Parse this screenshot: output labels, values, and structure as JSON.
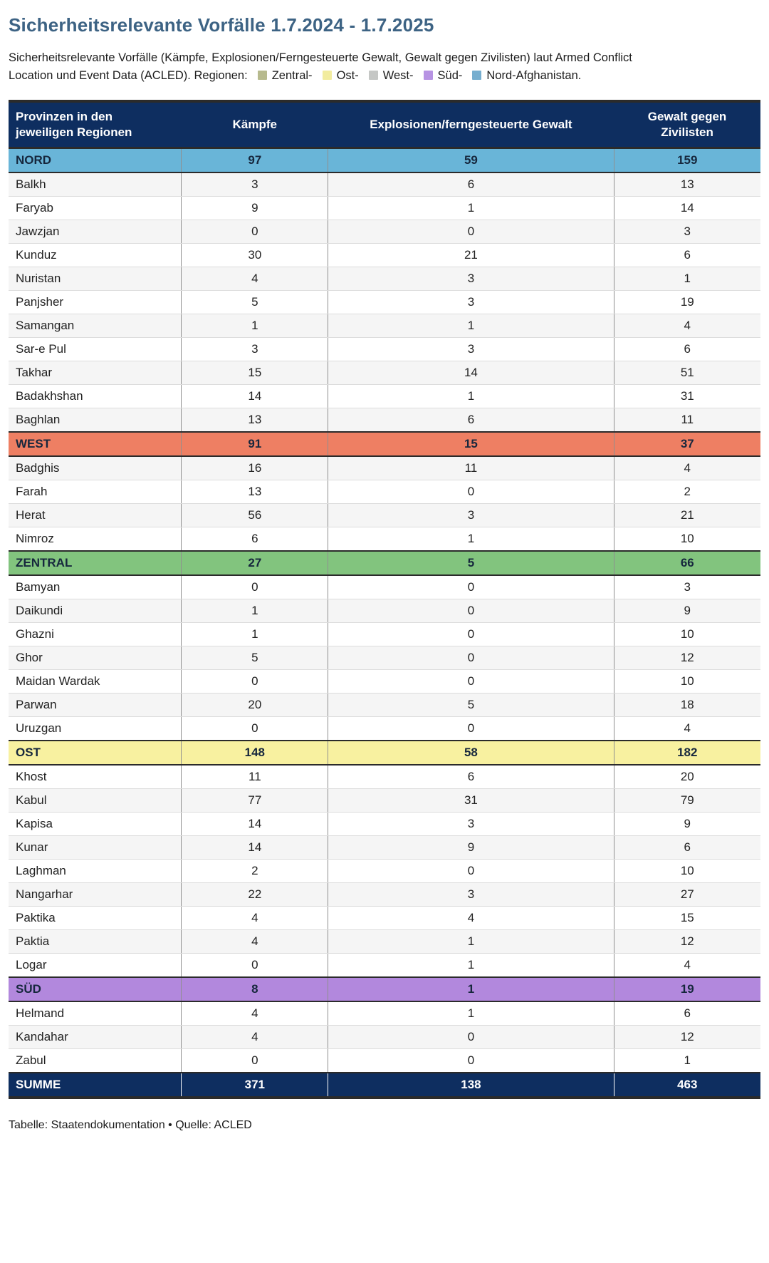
{
  "chart_data": {
    "type": "table",
    "title": "Sicherheitsrelevante Vorfälle 1.7.2024 - 1.7.2025",
    "subtitle_text": "Sicherheitsrelevante Vorfälle (Kämpfe, Explosionen/Ferngesteuerte Gewalt, Gewalt gegen Zivilisten) laut Armed Conflict Location und Event Data (ACLED). Regionen:",
    "legend": [
      {
        "label": "Zentral-",
        "color": "#b7ba8e"
      },
      {
        "label": "Ost-",
        "color": "#f2ec9f"
      },
      {
        "label": "West-",
        "color": "#c5c7c5"
      },
      {
        "label": "Süd-",
        "color": "#b793e3"
      },
      {
        "label": "Nord-Afghanistan.",
        "color": "#76aecf"
      }
    ],
    "columns": [
      "Provinzen in den jeweiligen Regionen",
      "Kämpfe",
      "Explosionen/ferngesteuerte Gewalt",
      "Gewalt gegen Zivilisten"
    ],
    "rows": [
      {
        "type": "region",
        "label": "NORD",
        "values": [
          97,
          59,
          159
        ],
        "color": "#69b5d8"
      },
      {
        "type": "province",
        "label": "Balkh",
        "values": [
          3,
          6,
          13
        ]
      },
      {
        "type": "province",
        "label": "Faryab",
        "values": [
          9,
          1,
          14
        ]
      },
      {
        "type": "province",
        "label": "Jawzjan",
        "values": [
          0,
          0,
          3
        ]
      },
      {
        "type": "province",
        "label": "Kunduz",
        "values": [
          30,
          21,
          6
        ]
      },
      {
        "type": "province",
        "label": "Nuristan",
        "values": [
          4,
          3,
          1
        ]
      },
      {
        "type": "province",
        "label": "Panjsher",
        "values": [
          5,
          3,
          19
        ]
      },
      {
        "type": "province",
        "label": "Samangan",
        "values": [
          1,
          1,
          4
        ]
      },
      {
        "type": "province",
        "label": "Sar-e Pul",
        "values": [
          3,
          3,
          6
        ]
      },
      {
        "type": "province",
        "label": "Takhar",
        "values": [
          15,
          14,
          51
        ]
      },
      {
        "type": "province",
        "label": "Badakhshan",
        "values": [
          14,
          1,
          31
        ]
      },
      {
        "type": "province",
        "label": "Baghlan",
        "values": [
          13,
          6,
          11
        ]
      },
      {
        "type": "region",
        "label": "WEST",
        "values": [
          91,
          15,
          37
        ],
        "color": "#ee7f63"
      },
      {
        "type": "province",
        "label": "Badghis",
        "values": [
          16,
          11,
          4
        ]
      },
      {
        "type": "province",
        "label": "Farah",
        "values": [
          13,
          0,
          2
        ]
      },
      {
        "type": "province",
        "label": "Herat",
        "values": [
          56,
          3,
          21
        ]
      },
      {
        "type": "province",
        "label": "Nimroz",
        "values": [
          6,
          1,
          10
        ]
      },
      {
        "type": "region",
        "label": "ZENTRAL",
        "values": [
          27,
          5,
          66
        ],
        "color": "#82c47e"
      },
      {
        "type": "province",
        "label": "Bamyan",
        "values": [
          0,
          0,
          3
        ]
      },
      {
        "type": "province",
        "label": "Daikundi",
        "values": [
          1,
          0,
          9
        ]
      },
      {
        "type": "province",
        "label": "Ghazni",
        "values": [
          1,
          0,
          10
        ]
      },
      {
        "type": "province",
        "label": "Ghor",
        "values": [
          5,
          0,
          12
        ]
      },
      {
        "type": "province",
        "label": "Maidan Wardak",
        "values": [
          0,
          0,
          10
        ]
      },
      {
        "type": "province",
        "label": "Parwan",
        "values": [
          20,
          5,
          18
        ]
      },
      {
        "type": "province",
        "label": "Uruzgan",
        "values": [
          0,
          0,
          4
        ]
      },
      {
        "type": "region",
        "label": "OST",
        "values": [
          148,
          58,
          182
        ],
        "color": "#f8f1a0"
      },
      {
        "type": "province",
        "label": "Khost",
        "values": [
          11,
          6,
          20
        ]
      },
      {
        "type": "province",
        "label": "Kabul",
        "values": [
          77,
          31,
          79
        ]
      },
      {
        "type": "province",
        "label": "Kapisa",
        "values": [
          14,
          3,
          9
        ]
      },
      {
        "type": "province",
        "label": "Kunar",
        "values": [
          14,
          9,
          6
        ]
      },
      {
        "type": "province",
        "label": "Laghman",
        "values": [
          2,
          0,
          10
        ]
      },
      {
        "type": "province",
        "label": "Nangarhar",
        "values": [
          22,
          3,
          27
        ]
      },
      {
        "type": "province",
        "label": "Paktika",
        "values": [
          4,
          4,
          15
        ]
      },
      {
        "type": "province",
        "label": "Paktia",
        "values": [
          4,
          1,
          12
        ]
      },
      {
        "type": "province",
        "label": "Logar",
        "values": [
          0,
          1,
          4
        ]
      },
      {
        "type": "region",
        "label": "SÜD",
        "values": [
          8,
          1,
          19
        ],
        "color": "#b288dd"
      },
      {
        "type": "province",
        "label": "Helmand",
        "values": [
          4,
          1,
          6
        ]
      },
      {
        "type": "province",
        "label": "Kandahar",
        "values": [
          4,
          0,
          12
        ]
      },
      {
        "type": "province",
        "label": "Zabul",
        "values": [
          0,
          0,
          1
        ]
      },
      {
        "type": "total",
        "label": "SUMME",
        "values": [
          371,
          138,
          463
        ],
        "color": "#0e2e60"
      }
    ],
    "footer": "Tabelle: Staatendokumentation • Quelle: ACLED",
    "layout": {
      "grid": "row-borders",
      "stripe_color": "#f5f5f5",
      "header_bg": "#0e2e60",
      "title_color": "#3d6384"
    }
  }
}
